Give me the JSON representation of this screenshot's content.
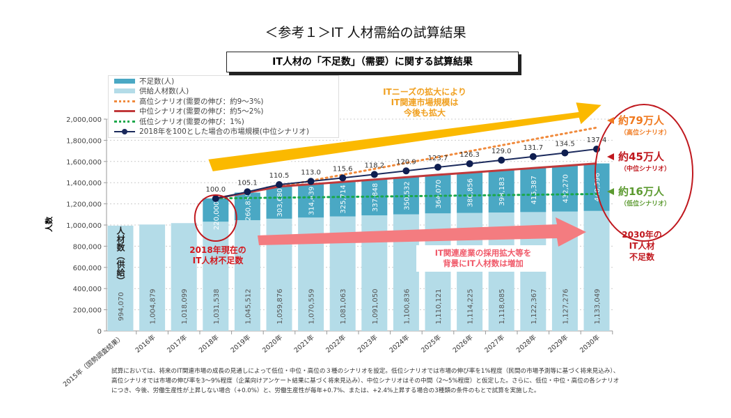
{
  "title": "＜参考１＞IT 人材需給の試算結果",
  "subtitle": "IT人材の「不足数」（需要）に関する試算結果",
  "legend": [
    {
      "label": "不足数(人)",
      "color": "#4aa8c4",
      "style": "bar"
    },
    {
      "label": "供給人材数(人)",
      "color": "#b4dce8",
      "style": "bar"
    },
    {
      "label": "高位シナリオ(需要の伸び：約9～3%)",
      "color": "#f08a3c",
      "style": "dotted"
    },
    {
      "label": "中位シナリオ(需要の伸び：約5～2%)",
      "color": "#c0393b",
      "style": "solid"
    },
    {
      "label": "低位シナリオ(需要の伸び：1%)",
      "color": "#1aa84a",
      "style": "dotted"
    },
    {
      "label": "2018年を100とした場合の市場規模(中位シナリオ)",
      "color": "#1b2a5c",
      "style": "line-marker"
    }
  ],
  "chart_data": {
    "type": "bar",
    "stacked": true,
    "ylabel": "人数",
    "ylim": [
      0,
      2000000
    ],
    "y2lim": [
      0,
      160
    ],
    "yticks": [
      "0",
      "200,000",
      "400,000",
      "600,000",
      "800,000",
      "1,000,000",
      "1,200,000",
      "1,400,000",
      "1,600,000",
      "1,800,000",
      "2,000,000"
    ],
    "grid": true,
    "categories": [
      "2015年（国勢調査結果）",
      "2016年",
      "2017年",
      "2018年",
      "2019年",
      "2020年",
      "2021年",
      "2022年",
      "2023年",
      "2024年",
      "2025年",
      "2026年",
      "2027年",
      "2028年",
      "2029年",
      "2030年"
    ],
    "supply": [
      994070,
      1004879,
      1018099,
      1031538,
      1045512,
      1059876,
      1070559,
      1081063,
      1091050,
      1100836,
      1110121,
      1114225,
      1118085,
      1122367,
      1127276,
      1133049
    ],
    "supply_labels": [
      "994,070",
      "1,004,879",
      "1,018,099",
      "1,031,538",
      "1,045,512",
      "1,059,876",
      "1,070,559",
      "1,081,063",
      "1,091,050",
      "1,100,836",
      "1,110,121",
      "1,114,225",
      "1,118,085",
      "1,122,367",
      "1,127,276",
      "1,133,049"
    ],
    "shortage": [
      null,
      null,
      null,
      220000,
      260835,
      303680,
      314439,
      325714,
      337848,
      350532,
      364070,
      380856,
      398183,
      415387,
      432270,
      448596
    ],
    "shortage_labels": [
      "",
      "",
      "",
      "220,000",
      "260,835",
      "303,680",
      "314,439",
      "325,714",
      "337,848",
      "350,532",
      "364,070",
      "380,856",
      "398,183",
      "415,387",
      "432,270",
      "448,596"
    ],
    "market_index": [
      null,
      null,
      null,
      100.0,
      105.1,
      110.5,
      113.0,
      115.6,
      118.2,
      120.9,
      123.7,
      126.3,
      129.0,
      131.7,
      134.5,
      137.4
    ],
    "market_index_labels": [
      "",
      "",
      "",
      "100.0",
      "105.1",
      "110.5",
      "113.0",
      "115.6",
      "118.2",
      "120.9",
      "123.7",
      "126.3",
      "129.0",
      "131.7",
      "134.5",
      "137.4"
    ],
    "high_scenario_2030": 1920000,
    "low_scenario_2030": 1293000,
    "supply_series_label": "人材数（供給）"
  },
  "annotations": {
    "yellow_arrow_text": [
      "ITニーズの拡大により",
      "IT関連市場規模は",
      "今後も拡大"
    ],
    "pink_arrow_text": [
      "IT関連産業の採用拡大等を",
      "背景にIT人材数は増加"
    ],
    "current_shortage": [
      "2018年現在の",
      "IT人材不足数"
    ],
    "high": {
      "value": "約79万人",
      "sub": "（高位シナリオ）"
    },
    "mid": {
      "value": "約45万人",
      "sub": "（中位シナリオ）"
    },
    "low": {
      "value": "約16万人",
      "sub": "（低位シナリオ）"
    },
    "shortage_2030": [
      "2030年の",
      "IT人材",
      "不足数"
    ]
  },
  "note": "試算においては、将来のIT関連市場の成長の見通しによって低位・中位・高位の３種のシナリオを設定。低位シナリオでは市場の伸び率を1%程度（民間の市場予測等に基づく将来見込み）、高位シナリオでは市場の伸び率を3～9%程度（企業向けアンケート結果に基づく将来見込み）、中位シナリオはその中間（2～5%程度）と仮定した。さらに、低位・中位・高位の各シナリオにつき、今後、労働生産性が上昇しない場合（+0.0%）と、労働生産性が毎年+0.7%、または、+2.4%上昇する場合の3種類の条件のもとで試算を実施した。"
}
